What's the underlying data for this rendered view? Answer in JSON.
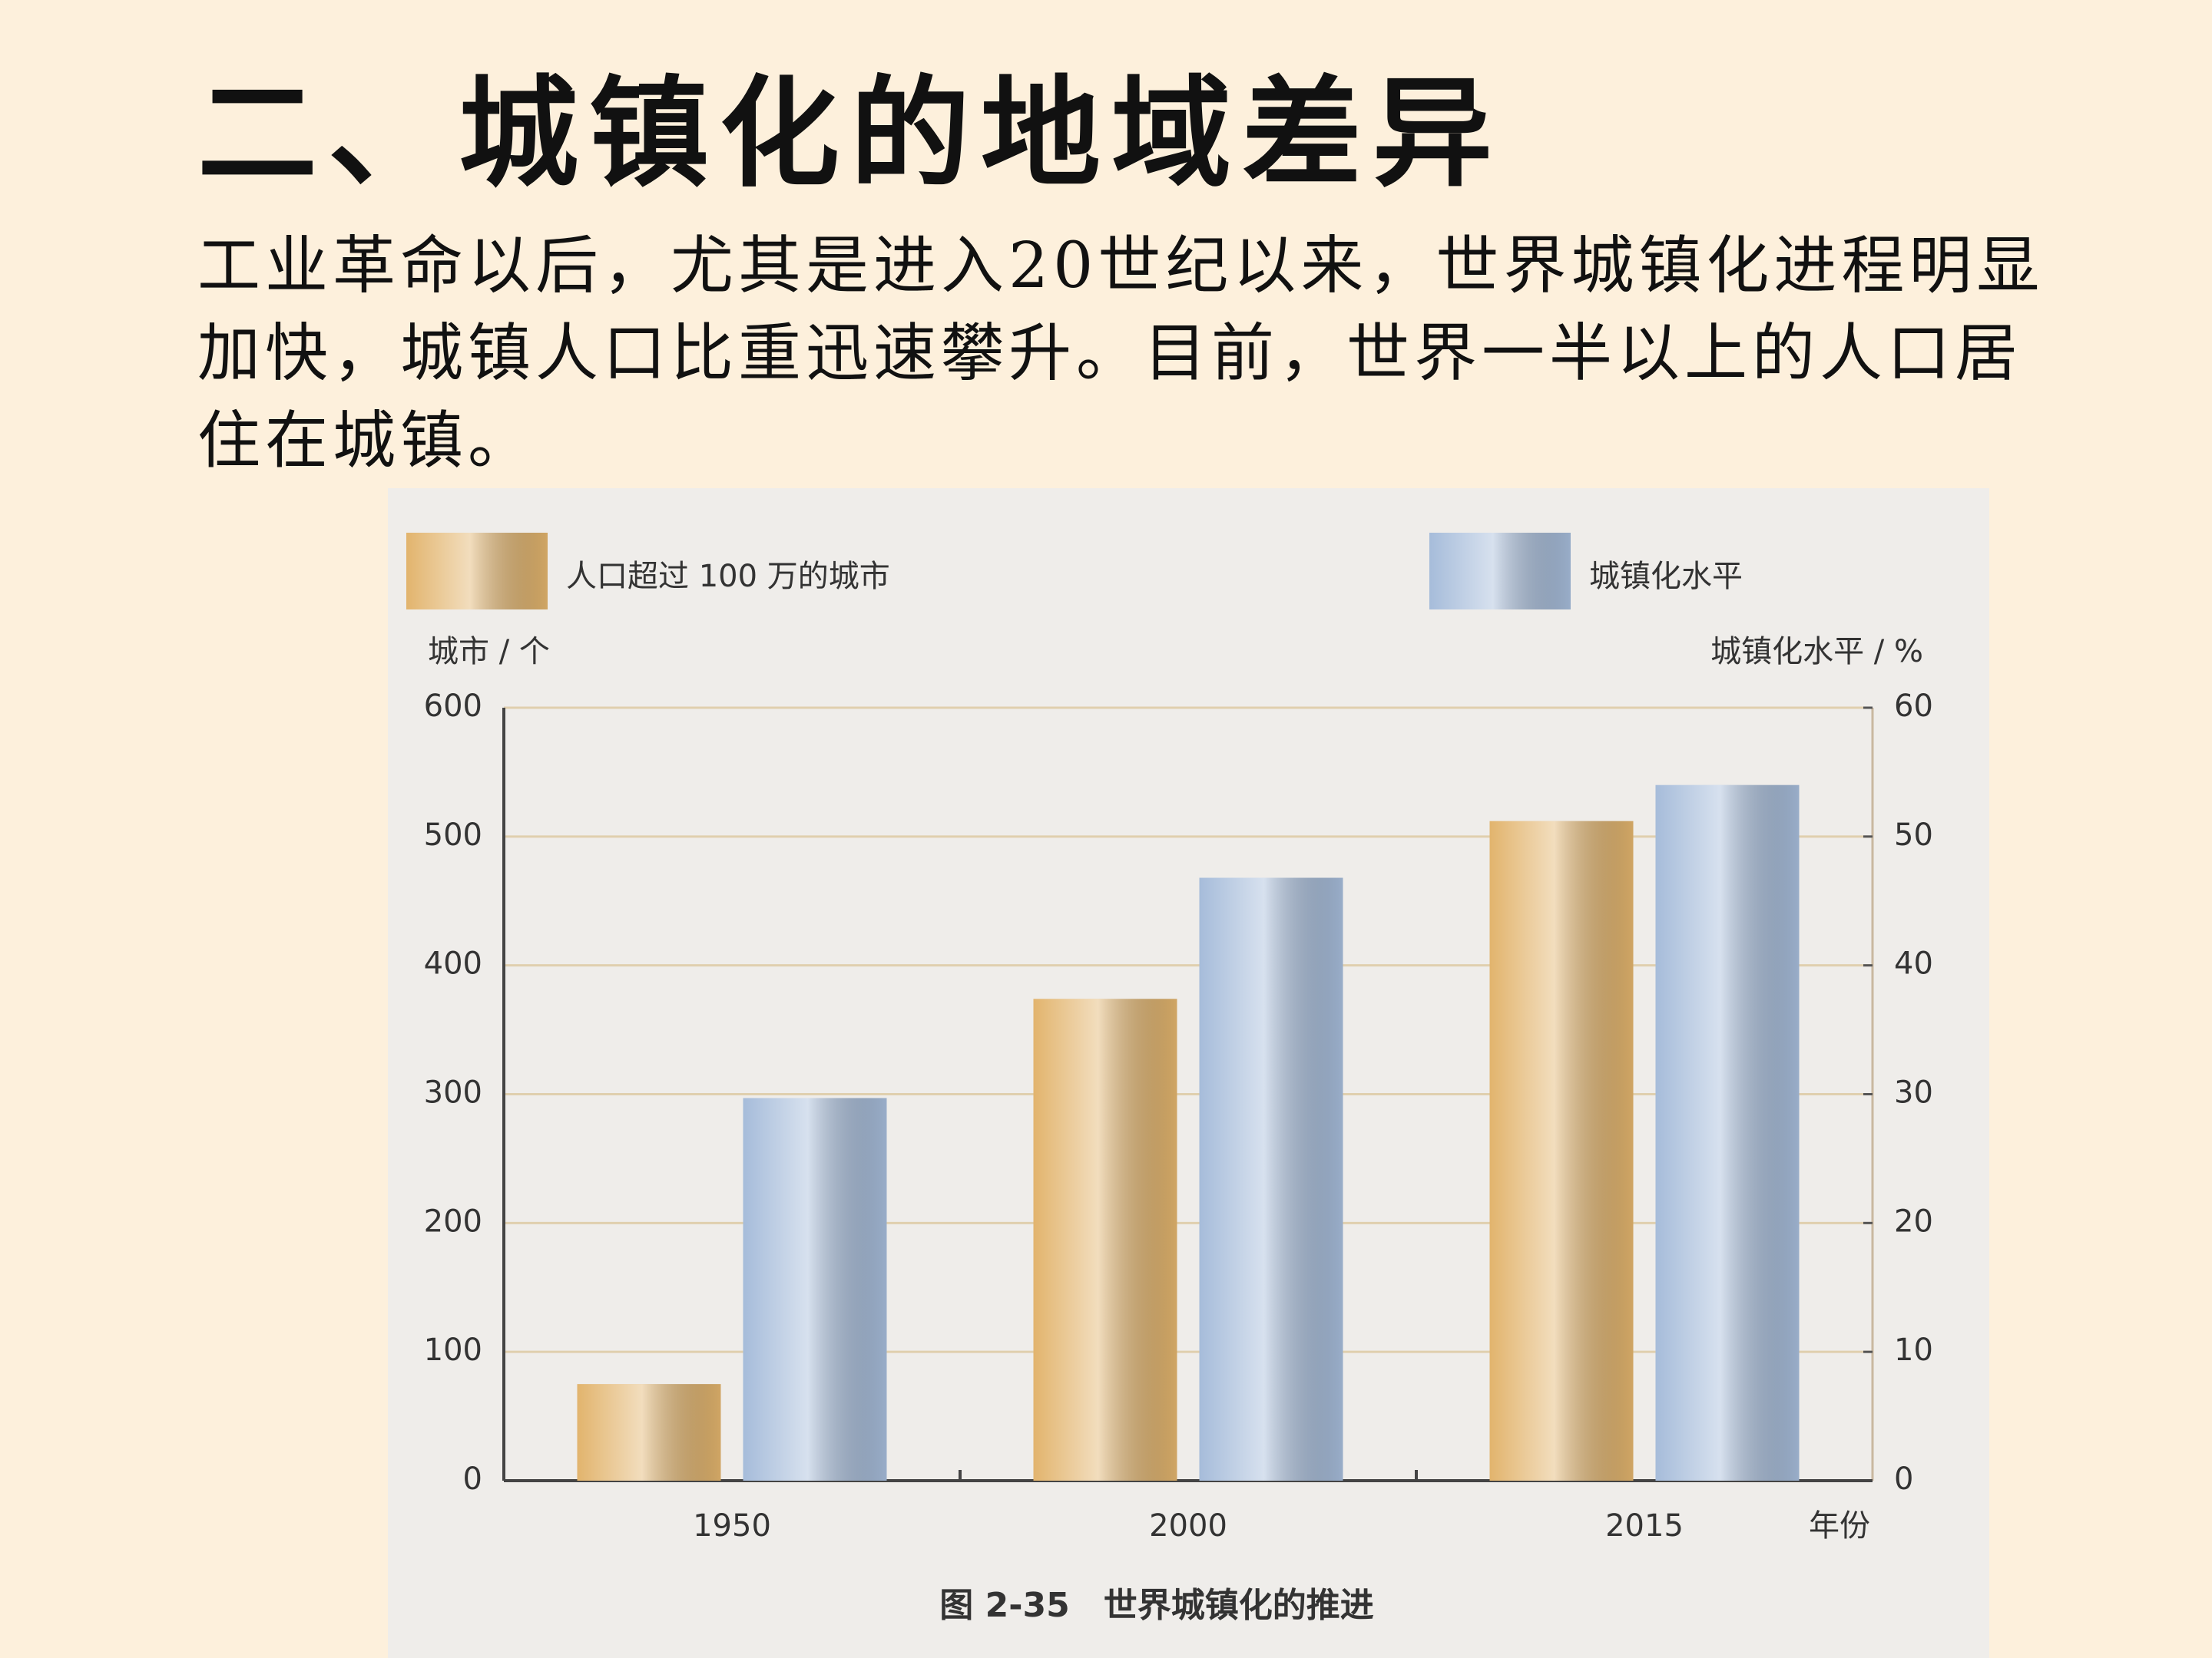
{
  "slide": {
    "title": "二、城镇化的地域差异",
    "paragraph": "工业革命以后，尤其是进入20世纪以来，世界城镇化进程明显加快，城镇人口比重迅速攀升。目前，世界一半以上的人口居住在城镇。"
  },
  "chart_data": {
    "type": "bar",
    "caption": "图 2-35　世界城镇化的推进",
    "y_label": "城市 / 个",
    "y2_label": "城镇化水平 / %",
    "x_label": "年份",
    "categories": [
      "1950",
      "2000",
      "2015"
    ],
    "series": [
      {
        "name": "人口超过 100 万的城市",
        "color": "#e2b46d",
        "values": [
          75,
          374,
          512
        ]
      },
      {
        "name": "城镇化水平",
        "color": "#a6bcda",
        "values": [
          29.7,
          46.8,
          54.0
        ],
        "axis": "y2"
      }
    ],
    "ylim": [
      0,
      600
    ],
    "yticks": [
      0,
      100,
      200,
      300,
      400,
      500,
      600
    ],
    "y2lim": [
      0,
      60
    ],
    "y2ticks": [
      0,
      10,
      20,
      30,
      40,
      50,
      60
    ],
    "grid": true
  }
}
